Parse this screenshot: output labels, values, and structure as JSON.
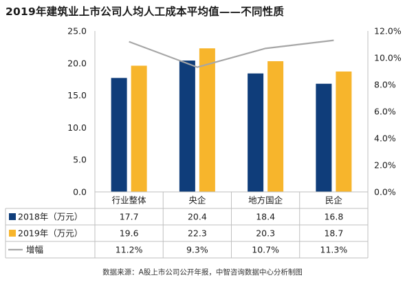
{
  "chart_data": {
    "type": "bar",
    "title": "2019年建筑业上市公司人均人工成本平均值——不同性质",
    "categories": [
      "行业整体",
      "央企",
      "地方国企",
      "民企"
    ],
    "series": [
      {
        "name": "2018年（万元）",
        "type": "bar",
        "axis": "left",
        "color": "#0f3d7a",
        "values": [
          17.7,
          20.4,
          18.4,
          16.8
        ],
        "labels": [
          "17.7",
          "20.4",
          "18.4",
          "16.8"
        ]
      },
      {
        "name": "2019年（万元）",
        "type": "bar",
        "axis": "left",
        "color": "#f7b52c",
        "values": [
          19.6,
          22.3,
          20.3,
          18.7
        ],
        "labels": [
          "19.6",
          "22.3",
          "20.3",
          "18.7"
        ]
      },
      {
        "name": "增幅",
        "type": "line",
        "axis": "right",
        "color": "#a6a6a6",
        "values": [
          11.2,
          9.3,
          10.7,
          11.3
        ],
        "labels": [
          "11.2%",
          "9.3%",
          "10.7%",
          "11.3%"
        ]
      }
    ],
    "y_left": {
      "min": 0,
      "max": 25,
      "ticks": [
        "0.0",
        "5.0",
        "10.0",
        "15.0",
        "20.0",
        "25.0"
      ]
    },
    "y_right": {
      "min": 0,
      "max": 12,
      "ticks": [
        "0.0%",
        "2.0%",
        "4.0%",
        "6.0%",
        "8.0%",
        "10.0%",
        "12.0%"
      ]
    },
    "grid": false,
    "legend": "data-table"
  },
  "source": "数据来源：A股上市公司公开年报，中智咨询数据中心分析制图"
}
